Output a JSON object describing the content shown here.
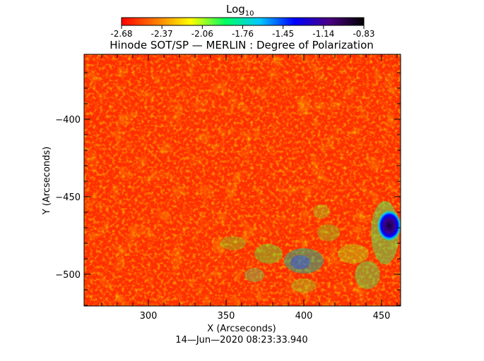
{
  "colorbar": {
    "label_main": "Log",
    "label_sub": "10",
    "ticks": [
      "-2.68",
      "-2.37",
      "-2.06",
      "-1.76",
      "-1.45",
      "-1.14",
      "-0.83"
    ],
    "colors": [
      "#ff0000",
      "#ff7a00",
      "#ffff00",
      "#00ff60",
      "#00c8ff",
      "#0000ff",
      "#4b0082",
      "#000000"
    ]
  },
  "title": "Hinode SOT/SP — MERLIN : Degree of Polarization",
  "x_axis": {
    "label": "X (Arcseconds)",
    "ticks": [
      "300",
      "350",
      "400",
      "450"
    ]
  },
  "y_axis": {
    "label": "Y (Arcseconds)",
    "ticks": [
      "−400",
      "−450",
      "−500"
    ]
  },
  "timestamp": "14—Jun—2020 08:23:33.940"
}
